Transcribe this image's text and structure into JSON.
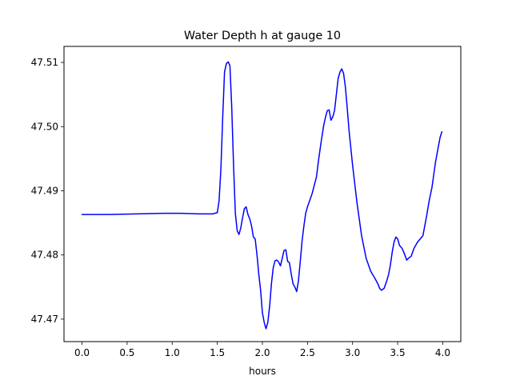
{
  "chart_data": {
    "type": "line",
    "title": "Water Depth h at gauge 10",
    "xlabel": "hours",
    "ylabel": "",
    "xlim": [
      -0.2,
      4.2
    ],
    "ylim": [
      47.4665,
      47.5125
    ],
    "xticks": [
      0.0,
      0.5,
      1.0,
      1.5,
      2.0,
      2.5,
      3.0,
      3.5,
      4.0
    ],
    "xtick_labels": [
      "0.0",
      "0.5",
      "1.0",
      "1.5",
      "2.0",
      "2.5",
      "3.0",
      "3.5",
      "4.0"
    ],
    "yticks": [
      47.47,
      47.48,
      47.49,
      47.5,
      47.51
    ],
    "ytick_labels": [
      "47.47",
      "47.48",
      "47.49",
      "47.50",
      "47.51"
    ],
    "grid": false,
    "legend": false,
    "series": [
      {
        "color": "#0000ff",
        "x": [
          0.0,
          0.3,
          0.6,
          0.9,
          1.1,
          1.3,
          1.45,
          1.5,
          1.52,
          1.54,
          1.56,
          1.58,
          1.6,
          1.62,
          1.64,
          1.66,
          1.68,
          1.7,
          1.72,
          1.74,
          1.76,
          1.78,
          1.8,
          1.82,
          1.84,
          1.86,
          1.88,
          1.9,
          1.92,
          1.94,
          1.96,
          1.98,
          2.0,
          2.02,
          2.04,
          2.06,
          2.08,
          2.1,
          2.12,
          2.14,
          2.16,
          2.18,
          2.2,
          2.22,
          2.24,
          2.26,
          2.28,
          2.3,
          2.32,
          2.34,
          2.36,
          2.38,
          2.4,
          2.42,
          2.44,
          2.46,
          2.48,
          2.5,
          2.55,
          2.6,
          2.62,
          2.65,
          2.68,
          2.7,
          2.72,
          2.74,
          2.76,
          2.78,
          2.8,
          2.82,
          2.84,
          2.86,
          2.88,
          2.9,
          2.92,
          2.94,
          2.96,
          3.0,
          3.05,
          3.1,
          3.15,
          3.2,
          3.22,
          3.25,
          3.28,
          3.3,
          3.32,
          3.35,
          3.38,
          3.4,
          3.42,
          3.44,
          3.46,
          3.48,
          3.5,
          3.52,
          3.55,
          3.58,
          3.6,
          3.62,
          3.65,
          3.68,
          3.7,
          3.72,
          3.75,
          3.78,
          3.8,
          3.82,
          3.85,
          3.88,
          3.9,
          3.92,
          3.95,
          3.97,
          3.99
        ],
        "y": [
          47.4863,
          47.4863,
          47.4864,
          47.4865,
          47.4865,
          47.4864,
          47.4864,
          47.4866,
          47.4885,
          47.4935,
          47.5015,
          47.5085,
          47.5098,
          47.5101,
          47.5095,
          47.503,
          47.494,
          47.4865,
          47.4838,
          47.4832,
          47.4842,
          47.4858,
          47.4872,
          47.4875,
          47.4863,
          47.4856,
          47.4845,
          47.4828,
          47.4825,
          47.48,
          47.477,
          47.4745,
          47.471,
          47.4695,
          47.4685,
          47.4695,
          47.472,
          47.4755,
          47.478,
          47.4791,
          47.4792,
          47.4789,
          47.4783,
          47.4795,
          47.4807,
          47.4808,
          47.479,
          47.4788,
          47.477,
          47.4755,
          47.475,
          47.4743,
          47.476,
          47.479,
          47.4822,
          47.4845,
          47.4865,
          47.4875,
          47.4895,
          47.4922,
          47.4945,
          47.4975,
          47.5002,
          47.5015,
          47.5025,
          47.5026,
          47.501,
          47.5015,
          47.5025,
          47.505,
          47.5075,
          47.5085,
          47.509,
          47.5083,
          47.5062,
          47.503,
          47.4995,
          47.494,
          47.488,
          47.483,
          47.4795,
          47.4775,
          47.477,
          47.4763,
          47.4755,
          47.4748,
          47.4745,
          47.4748,
          47.476,
          47.477,
          47.4785,
          47.4805,
          47.482,
          47.4828,
          47.4825,
          47.4815,
          47.481,
          47.48,
          47.4792,
          47.4795,
          47.4798,
          47.481,
          47.4815,
          47.482,
          47.4825,
          47.483,
          47.4845,
          47.486,
          47.4885,
          47.4905,
          47.4925,
          47.4945,
          47.4968,
          47.4983,
          47.4992
        ]
      }
    ]
  }
}
